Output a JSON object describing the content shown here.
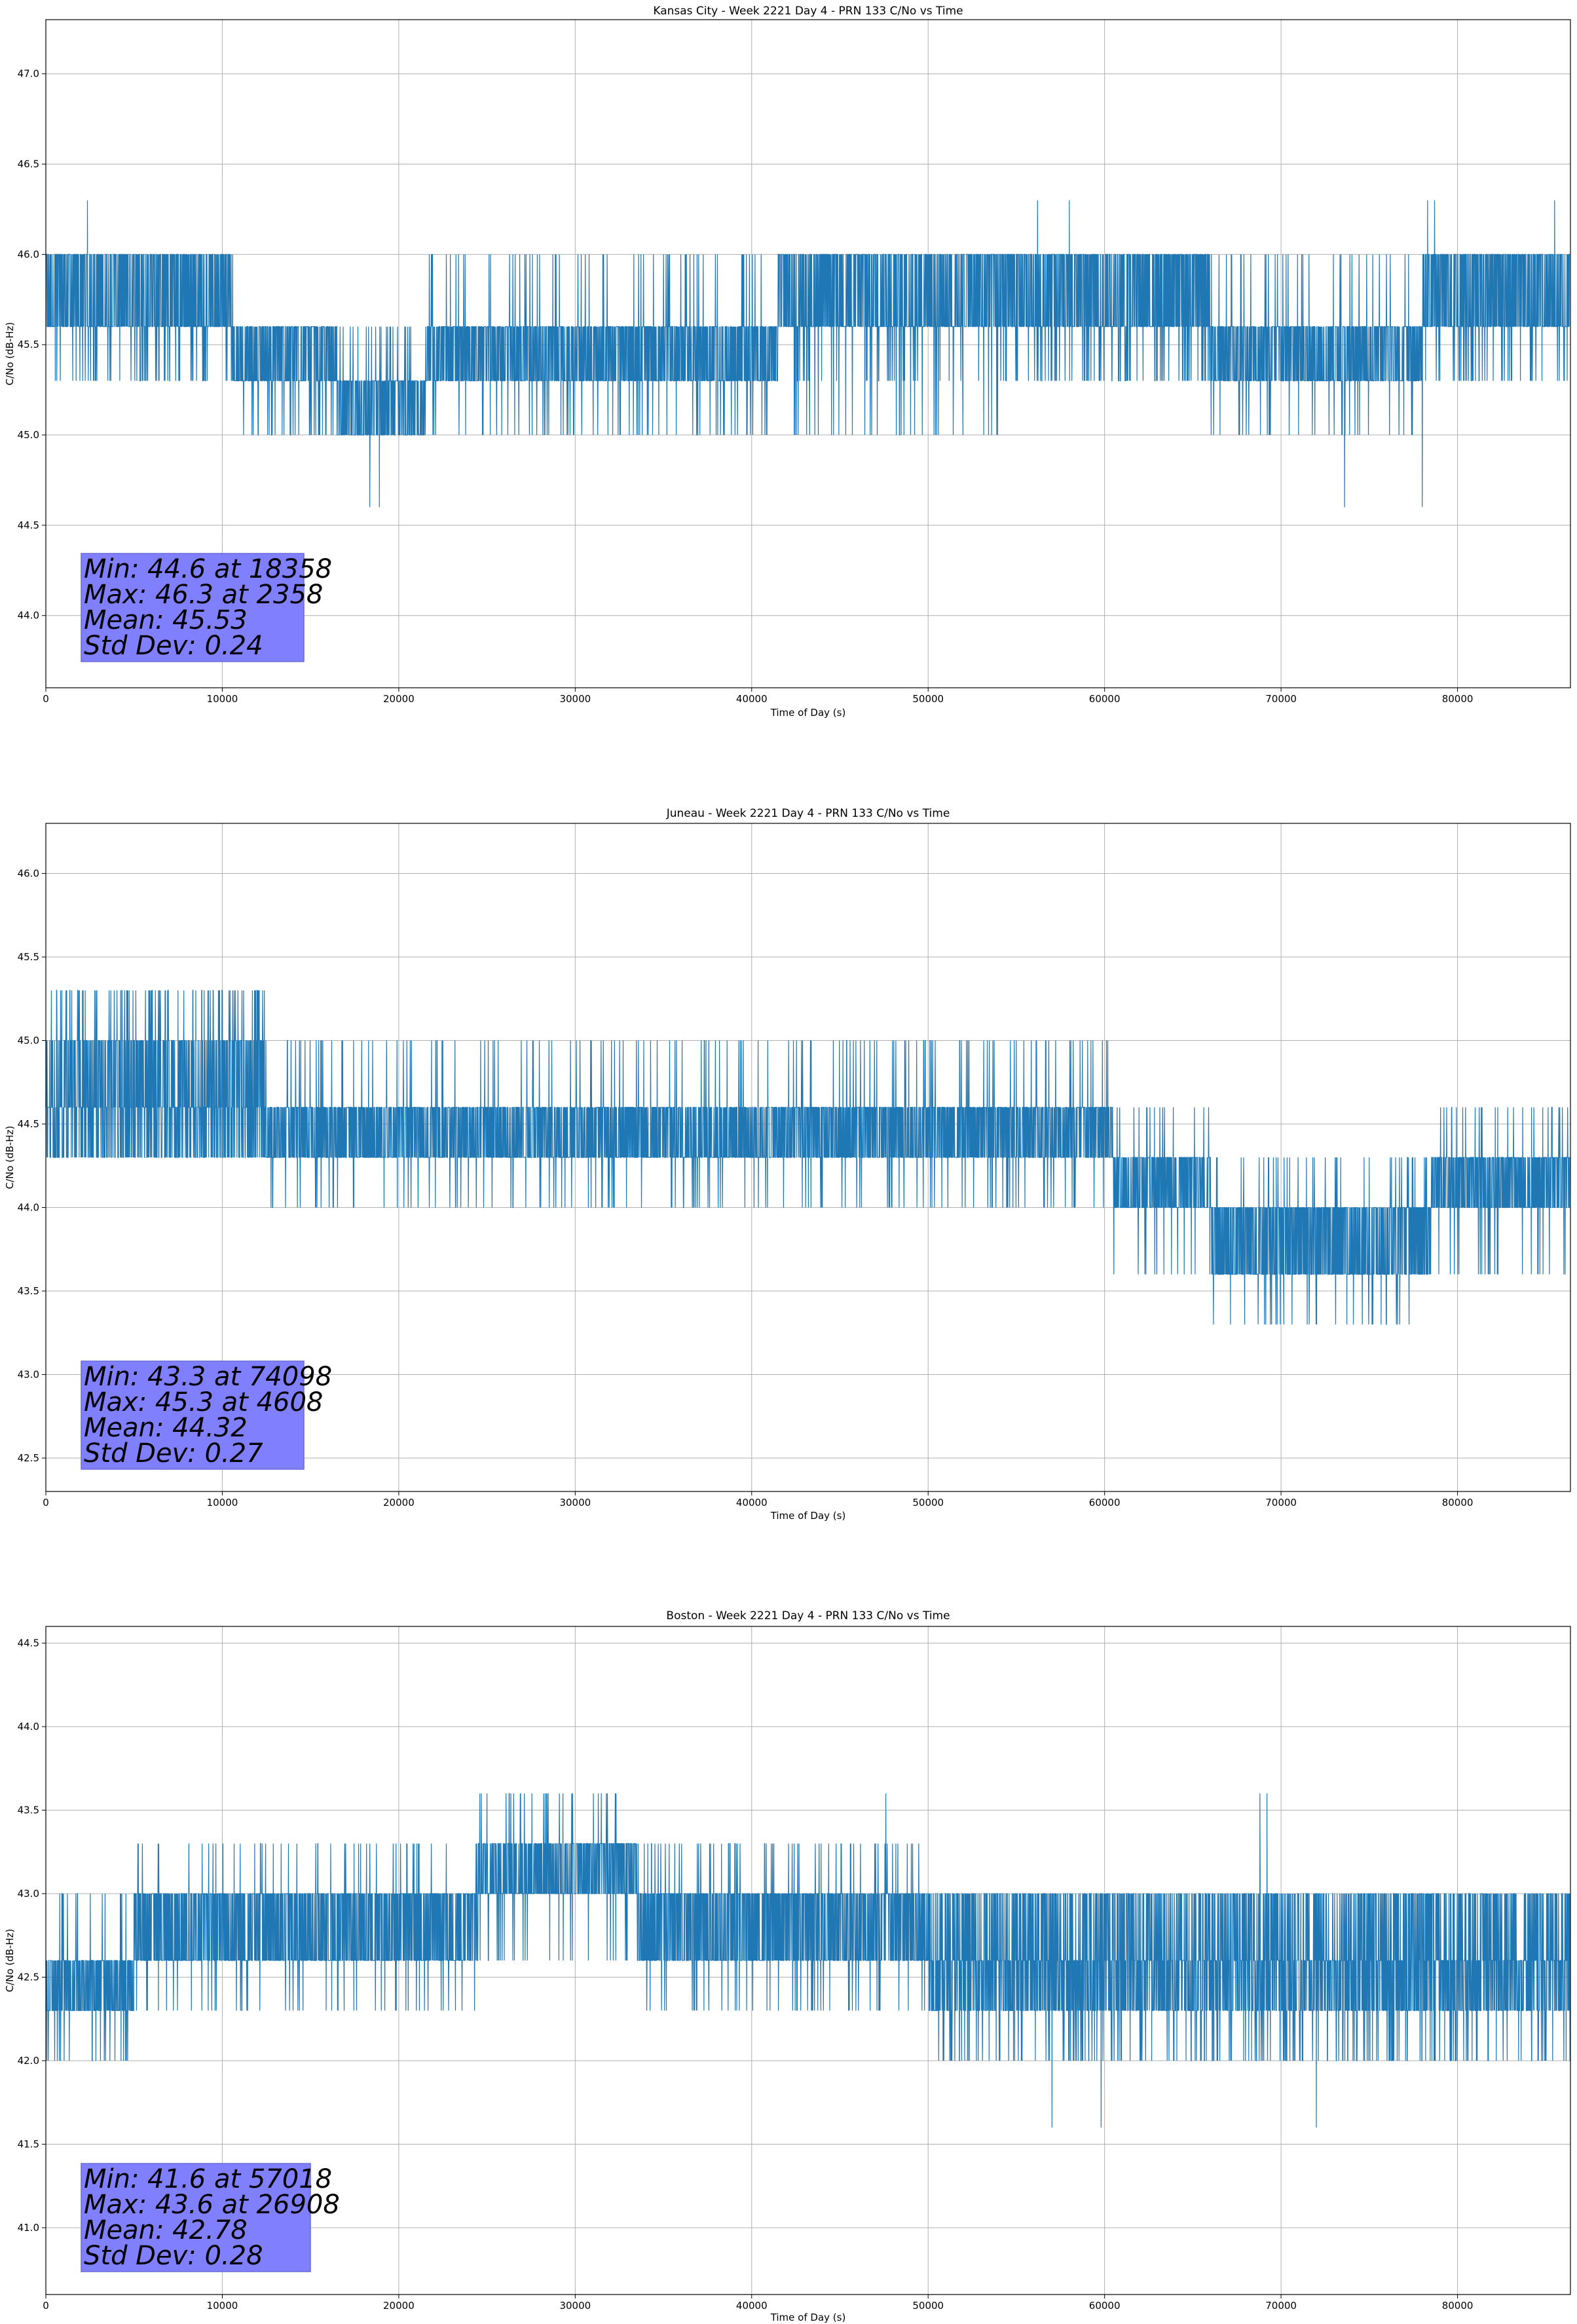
{
  "figure": {
    "background": "#ffffff"
  },
  "colors": {
    "line": "#1f77b4",
    "grid": "#b0b0b0",
    "stats_box_fill": "#8080ff",
    "stats_box_edge": "#6a6ad8",
    "axes": "#000000"
  },
  "chart_data": [
    {
      "type": "line",
      "title": "Kansas City - Week 2221 Day 4 - PRN 133 C/No vs Time",
      "xlabel": "Time of Day (s)",
      "ylabel": "C/No (dB-Hz)",
      "xlim": [
        0,
        86400
      ],
      "ylim": [
        43.6,
        47.3
      ],
      "xticks": [
        0,
        10000,
        20000,
        30000,
        40000,
        50000,
        60000,
        70000,
        80000
      ],
      "yticks": [
        44.0,
        44.5,
        45.0,
        45.5,
        46.0,
        46.5,
        47.0
      ],
      "grid": true,
      "quantization": 0.3,
      "levels": [
        44.6,
        45.0,
        45.3,
        45.6,
        46.0,
        46.3
      ],
      "segments": [
        {
          "x": [
            0,
            10500
          ],
          "main": [
            45.6,
            46.0
          ],
          "alt": [
            45.3
          ]
        },
        {
          "x": [
            10500,
            12000
          ],
          "main": [
            45.3,
            45.6
          ],
          "alt": [
            46.0,
            45.0
          ]
        },
        {
          "x": [
            12000,
            16500
          ],
          "main": [
            45.3,
            45.6
          ],
          "alt": [
            45.0
          ]
        },
        {
          "x": [
            16500,
            21500
          ],
          "main": [
            45.0,
            45.3
          ],
          "alt": [
            45.6
          ]
        },
        {
          "x": [
            21500,
            41500
          ],
          "main": [
            45.3,
            45.6
          ],
          "alt": [
            45.0,
            46.0
          ]
        },
        {
          "x": [
            41500,
            54000
          ],
          "main": [
            45.6,
            46.0
          ],
          "alt": [
            45.3,
            45.0
          ]
        },
        {
          "x": [
            54000,
            66000
          ],
          "main": [
            45.6,
            46.0
          ],
          "alt": [
            45.3
          ]
        },
        {
          "x": [
            66000,
            78000
          ],
          "main": [
            45.3,
            45.6
          ],
          "alt": [
            45.0,
            46.0
          ]
        },
        {
          "x": [
            78000,
            86400
          ],
          "main": [
            45.6,
            46.0
          ],
          "alt": [
            45.3
          ]
        }
      ],
      "spikes": [
        [
          2358,
          46.3
        ],
        [
          18358,
          44.6
        ],
        [
          18900,
          44.6
        ],
        [
          56200,
          46.3
        ],
        [
          58000,
          46.3
        ],
        [
          73600,
          44.6
        ],
        [
          78000,
          44.6
        ],
        [
          78300,
          46.3
        ],
        [
          78700,
          46.3
        ],
        [
          85500,
          46.3
        ]
      ],
      "stats": {
        "min": "Min: 44.6 at 18358",
        "max": "Max: 46.3 at 2358",
        "mean": "Mean: 45.53",
        "std": "Std Dev: 0.24"
      }
    },
    {
      "type": "line",
      "title": "Juneau - Week 2221 Day 4 - PRN 133 C/No vs Time",
      "xlabel": "Time of Day (s)",
      "ylabel": "C/No (dB-Hz)",
      "xlim": [
        0,
        86400
      ],
      "ylim": [
        42.3,
        46.3
      ],
      "xticks": [
        0,
        10000,
        20000,
        30000,
        40000,
        50000,
        60000,
        70000,
        80000
      ],
      "yticks": [
        42.5,
        43.0,
        43.5,
        44.0,
        44.5,
        45.0,
        45.5,
        46.0
      ],
      "grid": true,
      "quantization": 0.3,
      "levels": [
        43.3,
        43.6,
        44.0,
        44.3,
        44.6,
        45.0,
        45.3
      ],
      "segments": [
        {
          "x": [
            0,
            12500
          ],
          "main": [
            44.3,
            44.6,
            45.0
          ],
          "alt": [
            45.3
          ]
        },
        {
          "x": [
            12500,
            30000
          ],
          "main": [
            44.3,
            44.6
          ],
          "alt": [
            44.0,
            45.0
          ]
        },
        {
          "x": [
            30000,
            40000
          ],
          "main": [
            44.3,
            44.6
          ],
          "alt": [
            44.0,
            45.0
          ]
        },
        {
          "x": [
            40000,
            48000
          ],
          "main": [
            44.3,
            44.6
          ],
          "alt": [
            44.0,
            45.0
          ]
        },
        {
          "x": [
            48000,
            60500
          ],
          "main": [
            44.3,
            44.6
          ],
          "alt": [
            44.0,
            45.0
          ]
        },
        {
          "x": [
            60500,
            66000
          ],
          "main": [
            44.0,
            44.3
          ],
          "alt": [
            44.6,
            43.6
          ]
        },
        {
          "x": [
            66000,
            78500
          ],
          "main": [
            43.6,
            44.0
          ],
          "alt": [
            44.3,
            43.3
          ]
        },
        {
          "x": [
            78500,
            86400
          ],
          "main": [
            44.0,
            44.3
          ],
          "alt": [
            44.6,
            43.6
          ]
        }
      ],
      "spikes": [
        [
          4608,
          45.3
        ],
        [
          8500,
          45.3
        ],
        [
          9800,
          45.3
        ],
        [
          11900,
          45.3
        ],
        [
          74098,
          43.3
        ],
        [
          75200,
          43.3
        ],
        [
          76600,
          43.3
        ]
      ],
      "stats": {
        "min": "Min: 43.3 at 74098",
        "max": "Max: 45.3 at 4608",
        "mean": "Mean: 44.32",
        "std": "Std Dev: 0.27"
      }
    },
    {
      "type": "line",
      "title": "Boston - Week 2221 Day 4 - PRN 133 C/No vs Time",
      "xlabel": "Time of Day (s)",
      "ylabel": "C/No (dB-Hz)",
      "xlim": [
        0,
        86400
      ],
      "ylim": [
        40.6,
        44.6
      ],
      "xticks": [
        0,
        10000,
        20000,
        30000,
        40000,
        50000,
        60000,
        70000,
        80000
      ],
      "yticks": [
        41.0,
        41.5,
        42.0,
        42.5,
        43.0,
        43.5,
        44.0,
        44.5
      ],
      "grid": true,
      "quantization": 0.3,
      "levels": [
        41.6,
        42.0,
        42.3,
        42.6,
        43.0,
        43.3,
        43.6
      ],
      "segments": [
        {
          "x": [
            0,
            5000
          ],
          "main": [
            42.3,
            42.6
          ],
          "alt": [
            43.0,
            42.0
          ]
        },
        {
          "x": [
            5000,
            24500
          ],
          "main": [
            42.6,
            43.0
          ],
          "alt": [
            43.3,
            42.3
          ]
        },
        {
          "x": [
            24500,
            33500
          ],
          "main": [
            43.0,
            43.3
          ],
          "alt": [
            42.6,
            43.6
          ]
        },
        {
          "x": [
            33500,
            50000
          ],
          "main": [
            42.6,
            43.0
          ],
          "alt": [
            42.3,
            43.3
          ]
        },
        {
          "x": [
            50000,
            86400
          ],
          "main": [
            42.3,
            42.6,
            43.0
          ],
          "alt": [
            42.0
          ]
        }
      ],
      "spikes": [
        [
          500,
          42.0
        ],
        [
          26908,
          43.6
        ],
        [
          28400,
          43.6
        ],
        [
          29100,
          43.6
        ],
        [
          29800,
          43.6
        ],
        [
          47600,
          43.6
        ],
        [
          57018,
          41.6
        ],
        [
          59800,
          41.6
        ],
        [
          68800,
          43.6
        ],
        [
          69200,
          43.6
        ],
        [
          72000,
          41.6
        ]
      ],
      "stats": {
        "min": "Min: 41.6 at 57018",
        "max": "Max: 43.6 at 26908",
        "mean": "Mean: 42.78",
        "std": "Std Dev: 0.28"
      }
    }
  ]
}
